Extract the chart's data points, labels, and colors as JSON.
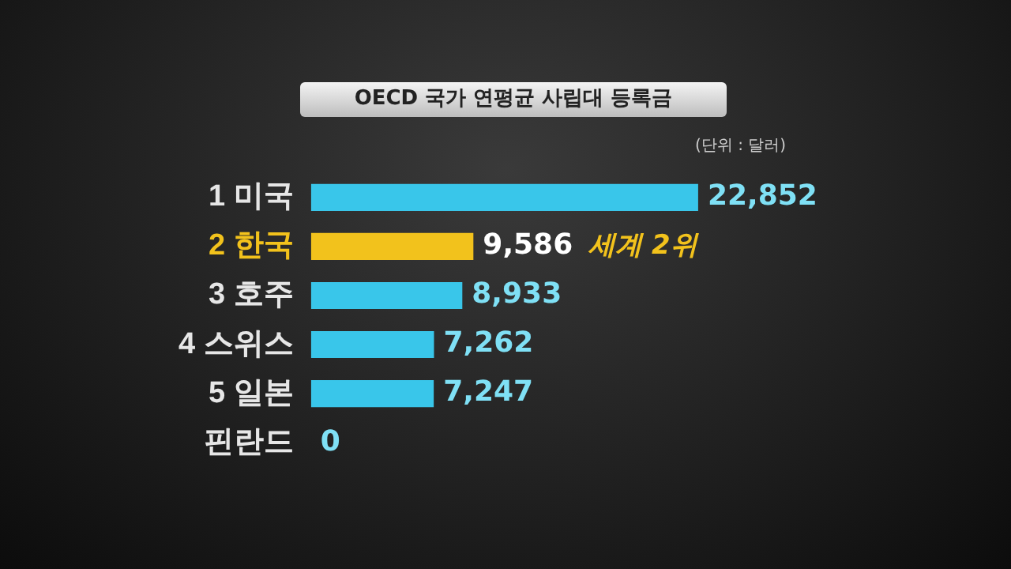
{
  "chart_data": {
    "type": "bar",
    "orientation": "horizontal",
    "title": "OECD 국가 연평균 사립대 등록금",
    "subtitle": "(단위 : 달러)",
    "categories": [
      "1 미국",
      "2 한국",
      "3 호주",
      "4 스위스",
      "5 일본",
      "핀란드"
    ],
    "values": [
      22852,
      9586,
      8933,
      7262,
      7247,
      0
    ],
    "colors": [
      "#39c6ea",
      "#f2c21c",
      "#39c6ea",
      "#39c6ea",
      "#39c6ea",
      "#39c6ea"
    ],
    "value_labels": [
      "22,852",
      "9,586",
      "8,933",
      "7,262",
      "7,247",
      "0"
    ],
    "tick_labels": "y",
    "legend": false,
    "annotations": [
      "세계 2위"
    ]
  }
}
